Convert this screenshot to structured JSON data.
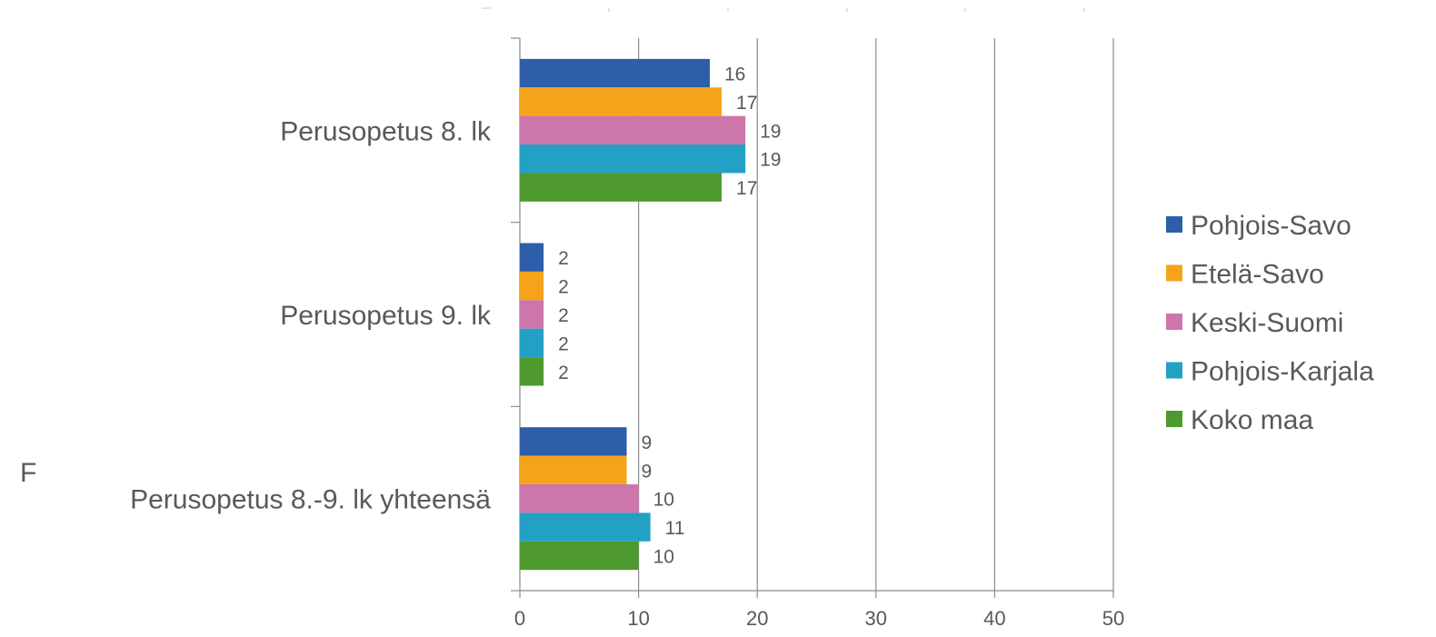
{
  "chart_data": {
    "type": "bar",
    "orientation": "horizontal",
    "categories": [
      "Perusopetus 8. lk",
      "Perusopetus 9. lk",
      "Perusopetus 8.-9. lk yhteensä"
    ],
    "series": [
      {
        "name": "Pohjois-Savo",
        "color": "#2E5EAA",
        "values": [
          16,
          2,
          9
        ]
      },
      {
        "name": "Etelä-Savo",
        "color": "#F5A31A",
        "values": [
          17,
          2,
          9
        ]
      },
      {
        "name": "Keski-Suomi",
        "color": "#CC76AC",
        "values": [
          19,
          2,
          10
        ]
      },
      {
        "name": "Pohjois-Karjala",
        "color": "#22A1C4",
        "values": [
          19,
          2,
          11
        ]
      },
      {
        "name": "Koko maa",
        "color": "#4E9A2F",
        "values": [
          17,
          2,
          10
        ]
      }
    ],
    "xlim": [
      0,
      50
    ],
    "xticks": [
      0,
      10,
      20,
      30,
      40,
      50
    ],
    "grid": true,
    "legend_position": "right",
    "data_labels": true
  },
  "stray_text": "F"
}
